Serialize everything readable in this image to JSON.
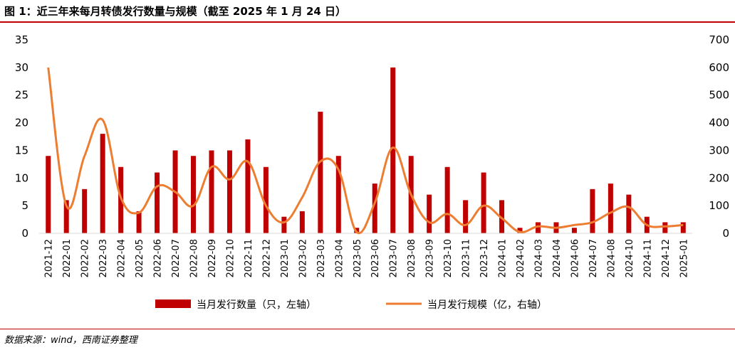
{
  "title": "图 1：近三年来每月转债发行数量与规模（截至 2025 年 1 月 24 日）",
  "source": "数据来源：wind，西南证券整理",
  "colors": {
    "bar": "#c00000",
    "line": "#ed7d31",
    "accent": "#c00000"
  },
  "chart_data": {
    "type": "bar",
    "categories": [
      "2021-12",
      "2022-01",
      "2022-02",
      "2022-03",
      "2022-04",
      "2022-05",
      "2022-06",
      "2022-07",
      "2022-08",
      "2022-09",
      "2022-10",
      "2022-11",
      "2022-12",
      "2023-01",
      "2023-02",
      "2023-03",
      "2023-04",
      "2023-05",
      "2023-06",
      "2023-07",
      "2023-08",
      "2023-09",
      "2023-10",
      "2023-11",
      "2023-12",
      "2024-01",
      "2024-02",
      "2024-03",
      "2024-04",
      "2024-06",
      "2024-07",
      "2024-08",
      "2024-10",
      "2024-11",
      "2024-12",
      "2025-01"
    ],
    "series": [
      {
        "name": "当月发行数量（只，左轴）",
        "type": "bar",
        "axis": "left",
        "values": [
          14,
          6,
          8,
          18,
          12,
          4,
          11,
          15,
          14,
          15,
          15,
          17,
          12,
          3,
          4,
          22,
          14,
          1,
          9,
          30,
          14,
          7,
          12,
          6,
          11,
          6,
          1,
          2,
          2,
          1,
          8,
          9,
          7,
          3,
          2,
          2
        ]
      },
      {
        "name": "当月发行规模（亿，右轴）",
        "type": "line",
        "axis": "right",
        "values": [
          600,
          100,
          280,
          410,
          130,
          75,
          170,
          150,
          100,
          240,
          195,
          260,
          100,
          40,
          130,
          260,
          230,
          5,
          110,
          310,
          140,
          40,
          70,
          30,
          100,
          55,
          5,
          25,
          20,
          30,
          40,
          75,
          95,
          30,
          25,
          30
        ]
      }
    ],
    "y_left": {
      "ylim": [
        0,
        35
      ],
      "ticks": [
        0,
        5,
        10,
        15,
        20,
        25,
        30,
        35
      ]
    },
    "y_right": {
      "ylim": [
        0,
        700
      ],
      "ticks": [
        0,
        100,
        200,
        300,
        400,
        500,
        600,
        700
      ]
    },
    "legend": {
      "placement": "bottom"
    },
    "grid": false
  }
}
